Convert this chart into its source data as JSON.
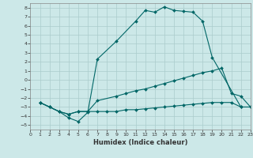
{
  "xlabel": "Humidex (Indice chaleur)",
  "bg_color": "#cce8e8",
  "grid_color": "#aacccc",
  "line_color": "#006666",
  "xlim": [
    0,
    23
  ],
  "ylim": [
    -5.5,
    8.5
  ],
  "xticks": [
    0,
    1,
    2,
    3,
    4,
    5,
    6,
    7,
    8,
    9,
    10,
    11,
    12,
    13,
    14,
    15,
    16,
    17,
    18,
    19,
    20,
    21,
    22,
    23
  ],
  "yticks": [
    -5,
    -4,
    -3,
    -2,
    -1,
    0,
    1,
    2,
    3,
    4,
    5,
    6,
    7,
    8
  ],
  "line1_x": [
    1,
    2,
    3,
    4,
    5,
    6,
    7,
    9,
    11,
    12,
    13,
    14,
    15,
    16,
    17,
    18,
    19,
    22
  ],
  "line1_y": [
    -2.5,
    -3.0,
    -3.5,
    -4.2,
    -4.6,
    -3.6,
    2.3,
    4.3,
    6.5,
    7.7,
    7.5,
    8.1,
    7.7,
    7.6,
    7.5,
    6.5,
    2.5,
    -3.0
  ],
  "line2_x": [
    1,
    2,
    3,
    4,
    5,
    6,
    7,
    9,
    10,
    11,
    12,
    13,
    14,
    15,
    16,
    17,
    18,
    19,
    20,
    21,
    22,
    23
  ],
  "line2_y": [
    -2.5,
    -3.0,
    -3.5,
    -3.8,
    -3.5,
    -3.5,
    -2.3,
    -1.8,
    -1.5,
    -1.2,
    -1.0,
    -0.7,
    -0.4,
    -0.1,
    0.2,
    0.5,
    0.8,
    1.0,
    1.3,
    -1.5,
    -1.8,
    -3.0
  ],
  "line3_x": [
    1,
    2,
    3,
    4,
    5,
    6,
    7,
    8,
    9,
    10,
    11,
    12,
    13,
    14,
    15,
    16,
    17,
    18,
    19,
    20,
    21,
    22,
    23
  ],
  "line3_y": [
    -2.5,
    -3.0,
    -3.5,
    -3.8,
    -3.5,
    -3.5,
    -3.5,
    -3.5,
    -3.5,
    -3.3,
    -3.3,
    -3.2,
    -3.1,
    -3.0,
    -2.9,
    -2.8,
    -2.7,
    -2.6,
    -2.5,
    -2.5,
    -2.5,
    -3.0,
    -3.0
  ]
}
